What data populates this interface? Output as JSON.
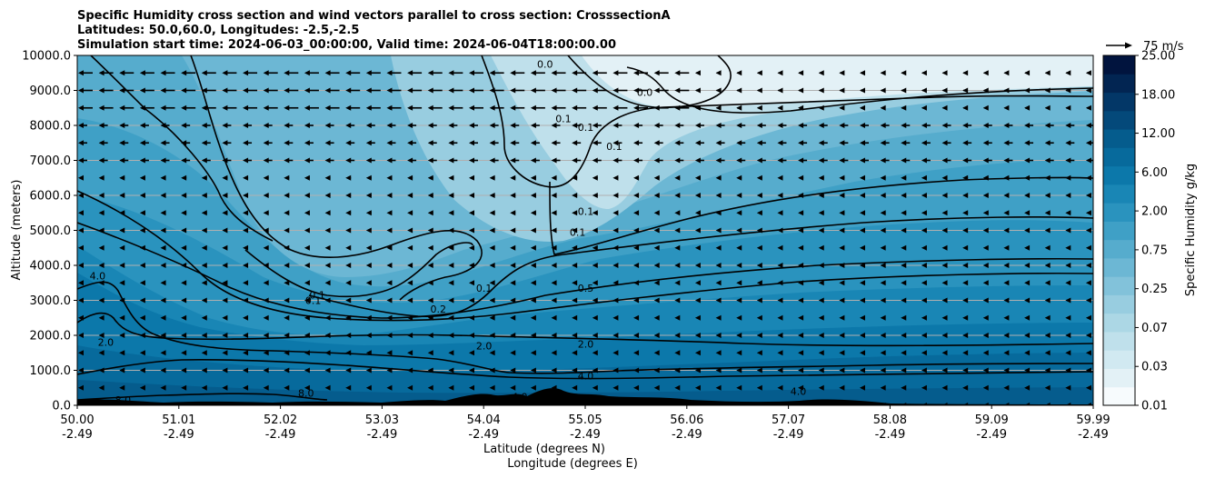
{
  "chart_data": {
    "type": "heatmap",
    "title_lines": [
      "Specific Humidity cross section and wind vectors parallel to cross section: CrosssectionA",
      "Latitudes: 50.0,60.0, Longitudes: -2.5,-2.5",
      "Simulation start time: 2024-06-03_00:00:00, Valid time: 2024-06-04T18:00:00.00"
    ],
    "ylabel": "Altitude (meters)",
    "xlabel_lat": "Latitude (degrees N)",
    "xlabel_lon": "Longitude (degrees E)",
    "ylim": [
      0,
      10000
    ],
    "y_ticks": [
      {
        "value": 0,
        "label": "0.0"
      },
      {
        "value": 1000,
        "label": "1000.0"
      },
      {
        "value": 2000,
        "label": "2000.0"
      },
      {
        "value": 3000,
        "label": "3000.0"
      },
      {
        "value": 4000,
        "label": "4000.0"
      },
      {
        "value": 5000,
        "label": "5000.0"
      },
      {
        "value": 6000,
        "label": "6000.0"
      },
      {
        "value": 7000,
        "label": "7000.0"
      },
      {
        "value": 8000,
        "label": "8000.0"
      },
      {
        "value": 9000,
        "label": "9000.0"
      },
      {
        "value": 10000,
        "label": "10000.0"
      }
    ],
    "x_ticks": [
      {
        "lat": "50.00",
        "lon": "-2.49"
      },
      {
        "lat": "51.01",
        "lon": "-2.49"
      },
      {
        "lat": "52.02",
        "lon": "-2.49"
      },
      {
        "lat": "53.03",
        "lon": "-2.49"
      },
      {
        "lat": "54.04",
        "lon": "-2.49"
      },
      {
        "lat": "55.05",
        "lon": "-2.49"
      },
      {
        "lat": "56.06",
        "lon": "-2.49"
      },
      {
        "lat": "57.07",
        "lon": "-2.49"
      },
      {
        "lat": "58.08",
        "lon": "-2.49"
      },
      {
        "lat": "59.09",
        "lon": "-2.49"
      },
      {
        "lat": "59.99",
        "lon": "-2.49"
      }
    ],
    "colorbar": {
      "label": "Specific Humidity g/kg",
      "levels": [
        "0.01",
        "0.02",
        "0.03",
        "0.05",
        "0.07",
        "0.1",
        "0.25",
        "0.5",
        "0.75",
        "1.0",
        "2.00",
        "4.0",
        "6.00",
        "8.0",
        "12.00",
        "15.0",
        "18.00",
        "21.0",
        "25.00"
      ],
      "tick_labels": [
        "0.01",
        "0.03",
        "0.07",
        "0.25",
        "0.75",
        "2.00",
        "6.00",
        "12.00",
        "18.00",
        "25.00"
      ],
      "colors": [
        "#f7fbfd",
        "#e3f1f6",
        "#d1e9f1",
        "#bfe0eb",
        "#acd7e5",
        "#98cde0",
        "#82c2da",
        "#6cb7d4",
        "#56accd",
        "#3fa0c6",
        "#2a93be",
        "#1986b5",
        "#0c78aa",
        "#076a9c",
        "#055c8d",
        "#04497a",
        "#033767",
        "#022552",
        "#01143e"
      ]
    },
    "quiver_key": {
      "label": "75 m/s"
    },
    "contour_labels": [
      {
        "text": "0.0",
        "lat": 54.6,
        "alt": 9750
      },
      {
        "text": "0.0",
        "lat": 55.58,
        "alt": 8950
      },
      {
        "text": "0.1",
        "lat": 54.78,
        "alt": 8200
      },
      {
        "text": "0.1",
        "lat": 55.0,
        "alt": 7950
      },
      {
        "text": "0.1",
        "lat": 55.28,
        "alt": 7400
      },
      {
        "text": "0.1",
        "lat": 55.0,
        "alt": 5550
      },
      {
        "text": "0.1",
        "lat": 54.92,
        "alt": 4950
      },
      {
        "text": "0.1",
        "lat": 52.36,
        "alt": 3150
      },
      {
        "text": "0.1",
        "lat": 52.32,
        "alt": 3000
      },
      {
        "text": "0.2",
        "lat": 53.55,
        "alt": 2750
      },
      {
        "text": "0.1",
        "lat": 54.0,
        "alt": 3350
      },
      {
        "text": "0.5",
        "lat": 55.0,
        "alt": 3350
      },
      {
        "text": "4.0",
        "lat": 50.2,
        "alt": 3700
      },
      {
        "text": "2.0",
        "lat": 50.28,
        "alt": 1800
      },
      {
        "text": "2.0",
        "lat": 54.0,
        "alt": 1700
      },
      {
        "text": "2.0",
        "lat": 55.0,
        "alt": 1750
      },
      {
        "text": "4.0",
        "lat": 55.0,
        "alt": 850
      },
      {
        "text": "8.0",
        "lat": 50.45,
        "alt": 150
      },
      {
        "text": "8.0",
        "lat": 52.25,
        "alt": 350
      },
      {
        "text": "4.0",
        "lat": 54.35,
        "alt": 250
      },
      {
        "text": "4.0",
        "lat": 57.09,
        "alt": 400
      }
    ]
  }
}
